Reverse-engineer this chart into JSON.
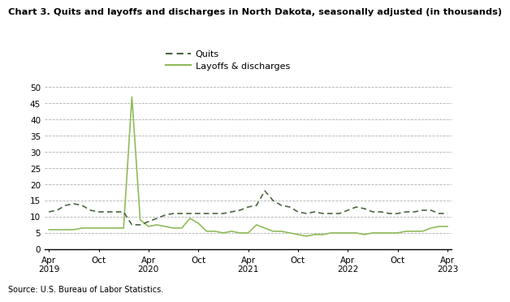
{
  "title": "Chart 3. Quits and layoffs and discharges in North Dakota, seasonally adjusted (in thousands)",
  "source": "Source: U.S. Bureau of Labor Statistics.",
  "quits_color": "#4a6741",
  "layoffs_color": "#8fbc5a",
  "background_color": "#ffffff",
  "ylim": [
    0,
    50
  ],
  "yticks": [
    0,
    5,
    10,
    15,
    20,
    25,
    30,
    35,
    40,
    45,
    50
  ],
  "legend_quits": "Quits",
  "legend_layoffs": "Layoffs & discharges",
  "xtick_positions": [
    0,
    6,
    12,
    18,
    24,
    30,
    36,
    42,
    48
  ],
  "xtick_labels_line1": [
    "Apr",
    "Oct",
    "Apr",
    "Oct",
    "Apr",
    "Oct",
    "Apr",
    "Oct",
    "Apr"
  ],
  "xtick_labels_line2": [
    "2019",
    "",
    "2020",
    "",
    "2021",
    "",
    "2022",
    "",
    "2023"
  ],
  "quits": [
    11.5,
    12.0,
    13.5,
    14.0,
    13.5,
    12.0,
    11.5,
    11.5,
    11.5,
    11.5,
    7.5,
    7.5,
    8.5,
    9.5,
    10.5,
    11.0,
    11.0,
    11.0,
    11.0,
    11.0,
    11.0,
    11.0,
    11.5,
    12.0,
    13.0,
    13.5,
    18.0,
    15.0,
    13.5,
    13.0,
    11.5,
    11.0,
    11.5,
    11.0,
    11.0,
    11.0,
    12.0,
    13.0,
    12.5,
    11.5,
    11.5,
    11.0,
    11.0,
    11.5,
    11.5,
    12.0,
    12.0,
    11.0,
    11.0
  ],
  "layoffs": [
    6.0,
    6.0,
    6.0,
    6.0,
    6.5,
    6.5,
    6.5,
    6.5,
    6.5,
    6.5,
    47.0,
    9.0,
    7.0,
    7.5,
    7.0,
    6.5,
    6.5,
    9.5,
    8.0,
    5.5,
    5.5,
    5.0,
    5.5,
    5.0,
    5.0,
    7.5,
    6.5,
    5.5,
    5.5,
    5.0,
    4.5,
    4.0,
    4.5,
    4.5,
    5.0,
    5.0,
    5.0,
    5.0,
    4.5,
    5.0,
    5.0,
    5.0,
    5.0,
    5.5,
    5.5,
    5.5,
    6.5,
    7.0,
    7.0
  ]
}
